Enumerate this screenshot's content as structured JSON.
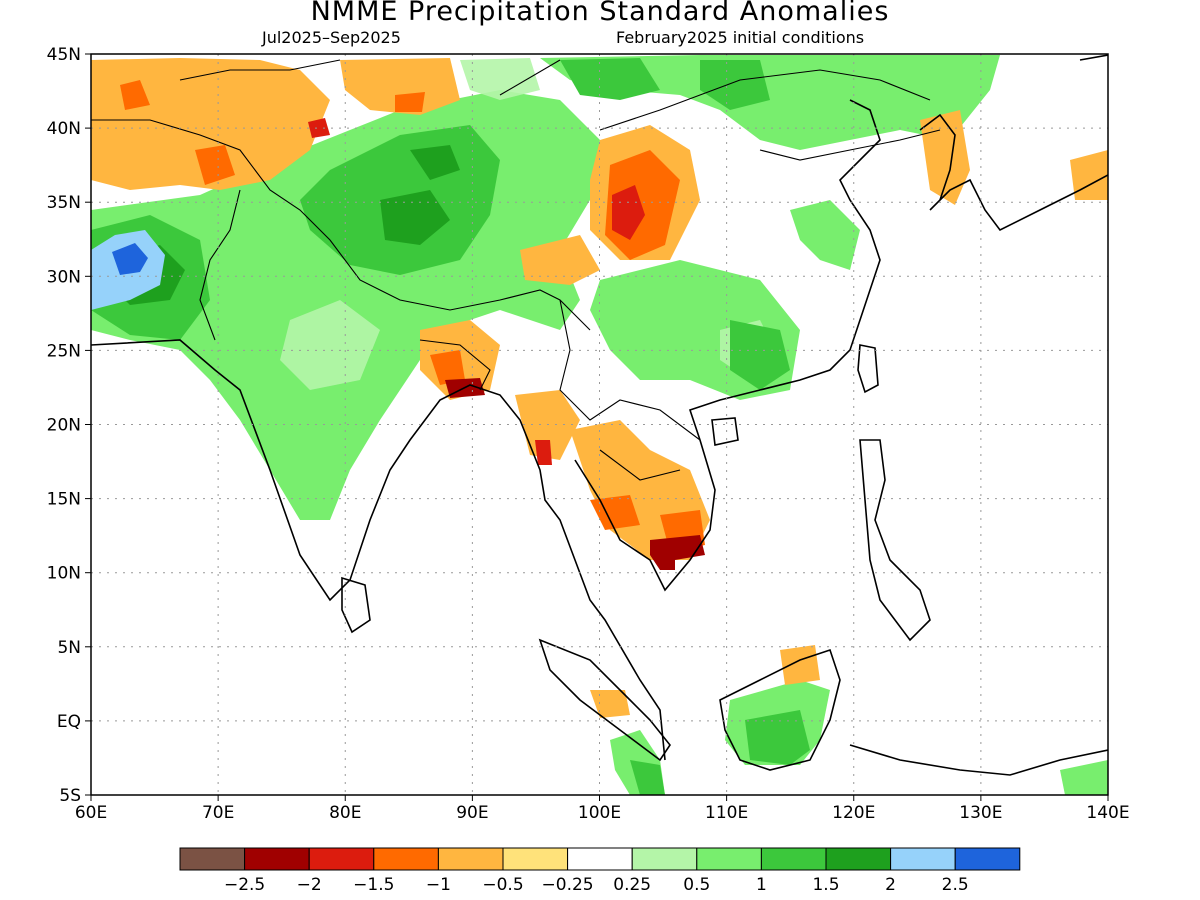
{
  "title": "NMME Precipitation Standard Anomalies",
  "period": "Jul2025–Sep2025",
  "initial_conditions": "February2025 initial conditions",
  "map": {
    "lat_labels": [
      "45N",
      "40N",
      "35N",
      "30N",
      "25N",
      "20N",
      "15N",
      "10N",
      "5N",
      "EQ",
      "5S"
    ],
    "lon_labels": [
      "60E",
      "70E",
      "80E",
      "90E",
      "100E",
      "110E",
      "120E",
      "130E",
      "140E"
    ],
    "lon_min": 60,
    "lon_max": 140,
    "lat_min": -5,
    "lat_max": 45
  },
  "legend": {
    "colors": [
      "#7b5244",
      "#a00000",
      "#dc1c0e",
      "#ff6a00",
      "#ffb640",
      "#ffe27a",
      "#ffffff",
      "#b4f5a8",
      "#78ee6e",
      "#3cc83c",
      "#1ea01e",
      "#96d2fa",
      "#1e64dc"
    ],
    "labels": [
      "−2.5",
      "−2",
      "−1.5",
      "−1",
      "−0.5",
      "−0.25",
      "0.25",
      "0.5",
      "1",
      "1.5",
      "2",
      "2.5"
    ]
  }
}
